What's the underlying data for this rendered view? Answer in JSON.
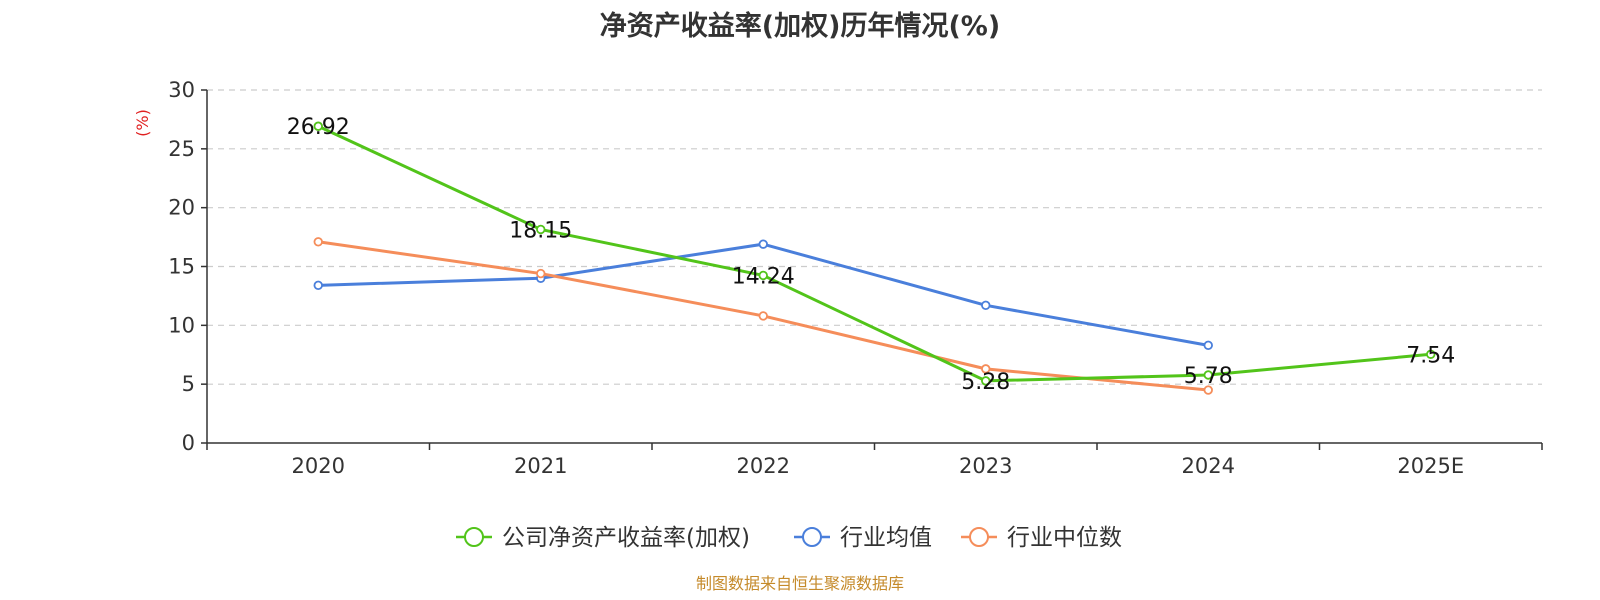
{
  "chart_data": {
    "type": "line",
    "title": "净资产收益率(加权)历年情况(%)",
    "ylabel": "(%)",
    "xlabel": "",
    "categories": [
      "2020",
      "2021",
      "2022",
      "2023",
      "2024",
      "2025E"
    ],
    "ylim": [
      0,
      30
    ],
    "yticks": [
      0,
      5,
      10,
      15,
      20,
      25,
      30
    ],
    "grid": true,
    "legend_position": "bottom",
    "series": [
      {
        "name": "公司净资产收益率(加权)",
        "color": "#52c41a",
        "values": [
          26.92,
          18.15,
          14.24,
          5.28,
          5.78,
          7.54
        ],
        "labels": [
          "26.92",
          "18.15",
          "14.24",
          "5.28",
          "5.78",
          "7.54"
        ]
      },
      {
        "name": "行业均值",
        "color": "#4a7fdb",
        "values": [
          13.4,
          14.0,
          16.9,
          11.7,
          8.3,
          null
        ]
      },
      {
        "name": "行业中位数",
        "color": "#f58d5a",
        "values": [
          17.1,
          14.4,
          10.8,
          6.3,
          4.5,
          null
        ]
      }
    ]
  },
  "footer": {
    "source": "制图数据来自恒生聚源数据库"
  }
}
